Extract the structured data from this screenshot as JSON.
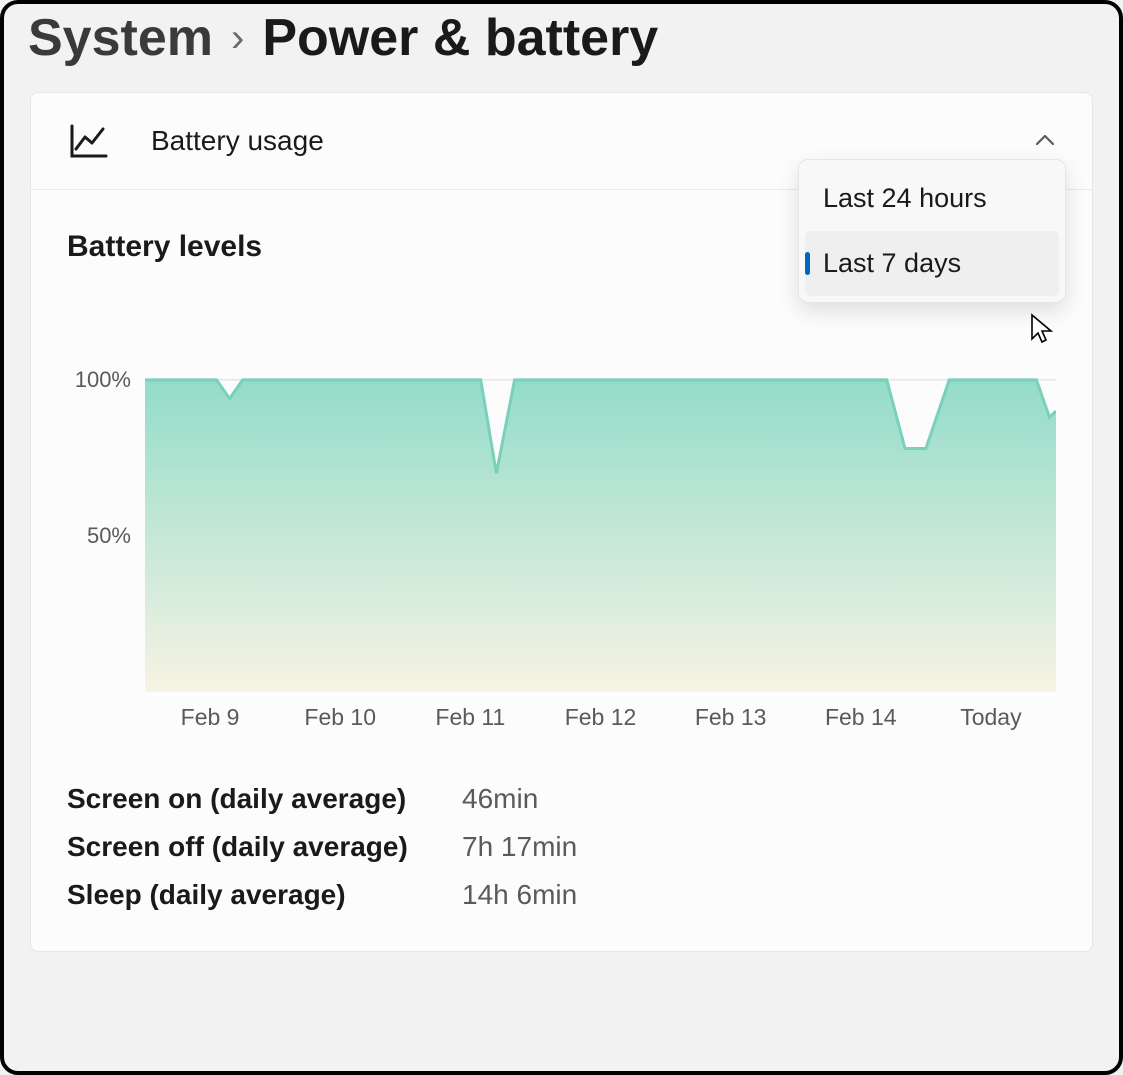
{
  "breadcrumb": {
    "parent": "System",
    "current": "Power & battery"
  },
  "section": {
    "title": "Battery usage"
  },
  "dropdown": {
    "options": [
      {
        "label": "Last 24 hours",
        "selected": false
      },
      {
        "label": "Last 7 days",
        "selected": true
      }
    ]
  },
  "chart": {
    "title": "Battery levels",
    "type": "area",
    "ylim": [
      0,
      100
    ],
    "y_ticks": [
      {
        "value": 100,
        "label": "100%"
      },
      {
        "value": 50,
        "label": "50%"
      }
    ],
    "x_labels": [
      "Feb 9",
      "Feb 10",
      "Feb 11",
      "Feb 12",
      "Feb 13",
      "Feb 14",
      "Today"
    ],
    "series": [
      {
        "x": 0.0,
        "y": 100
      },
      {
        "x": 0.55,
        "y": 100
      },
      {
        "x": 0.65,
        "y": 94
      },
      {
        "x": 0.75,
        "y": 100
      },
      {
        "x": 2.58,
        "y": 100
      },
      {
        "x": 2.7,
        "y": 70
      },
      {
        "x": 2.84,
        "y": 100
      },
      {
        "x": 5.7,
        "y": 100
      },
      {
        "x": 5.84,
        "y": 78
      },
      {
        "x": 6.0,
        "y": 78
      },
      {
        "x": 6.18,
        "y": 100
      },
      {
        "x": 6.85,
        "y": 100
      },
      {
        "x": 6.95,
        "y": 88
      },
      {
        "x": 7.0,
        "y": 90
      }
    ],
    "x_domain": [
      0,
      7
    ],
    "fill_gradient_top": "#93dcc9",
    "fill_gradient_bottom": "#f7f3e4",
    "line_color": "#7ad0bb",
    "line_width": 3,
    "grid_color": "#d9d9d9",
    "background_color": "#fcfcfc",
    "label_fontsize": 22,
    "title_fontsize": 30
  },
  "stats": [
    {
      "label": "Screen on (daily average)",
      "value": "46min"
    },
    {
      "label": "Screen off (daily average)",
      "value": "7h 17min"
    },
    {
      "label": "Sleep (daily average)",
      "value": "14h 6min"
    }
  ],
  "colors": {
    "page_background": "#f2f2f3",
    "card_background": "#fcfcfc",
    "card_border": "#e6e6e6",
    "text_primary": "#1a1a1a",
    "text_secondary": "#5a5a5a",
    "accent": "#0067c0",
    "dropdown_selected_bg": "#efefef"
  }
}
